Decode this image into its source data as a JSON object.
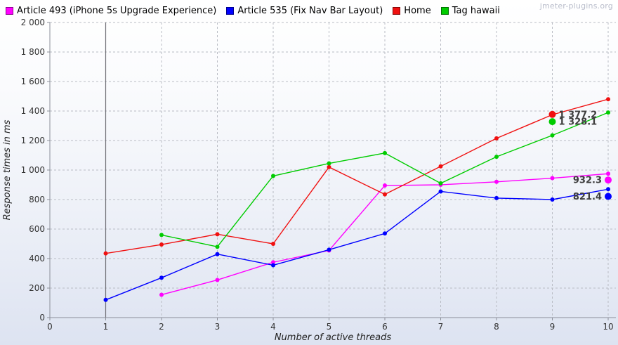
{
  "watermark": "jmeter-plugins.org",
  "chart_data": {
    "type": "line",
    "title": "",
    "xlabel": "Number of active threads",
    "ylabel": "Response times in ms",
    "xlim": [
      0,
      10
    ],
    "ylim": [
      0,
      2000
    ],
    "grid": true,
    "legend_position": "top-left",
    "x_ticks": [
      0,
      1,
      2,
      3,
      4,
      5,
      6,
      7,
      8,
      9,
      10
    ],
    "x_tick_labels": [
      "0",
      "1",
      "2",
      "3",
      "4",
      "5",
      "6",
      "7",
      "8",
      "9",
      "10"
    ],
    "y_ticks": [
      0,
      200,
      400,
      600,
      800,
      1000,
      1200,
      1400,
      1600,
      1800,
      2000
    ],
    "y_tick_labels": [
      "0",
      "200",
      "400",
      "600",
      "800",
      "1 000",
      "1 200",
      "1 400",
      "1 600",
      "1 800",
      "2 000"
    ],
    "vertical_marker_x": 1,
    "series": [
      {
        "name": "Article 493 (iPhone 5s Upgrade Experience)",
        "color": "#ff00ff",
        "points": [
          [
            2,
            155
          ],
          [
            3,
            255
          ],
          [
            4,
            375
          ],
          [
            5,
            455
          ],
          [
            6,
            895
          ],
          [
            7,
            900
          ],
          [
            8,
            920
          ],
          [
            9,
            945
          ],
          [
            10,
            975
          ]
        ]
      },
      {
        "name": "Article 535 (Fix Nav Bar Layout)",
        "color": "#0000ff",
        "points": [
          [
            1,
            120
          ],
          [
            2,
            270
          ],
          [
            3,
            430
          ],
          [
            4,
            355
          ],
          [
            5,
            460
          ],
          [
            6,
            570
          ],
          [
            7,
            855
          ],
          [
            8,
            810
          ],
          [
            9,
            800
          ],
          [
            10,
            870
          ]
        ]
      },
      {
        "name": "Home",
        "color": "#f01010",
        "points": [
          [
            1,
            435
          ],
          [
            2,
            495
          ],
          [
            3,
            565
          ],
          [
            4,
            500
          ],
          [
            5,
            1020
          ],
          [
            6,
            835
          ],
          [
            7,
            1025
          ],
          [
            8,
            1215
          ],
          [
            9,
            1375
          ],
          [
            10,
            1480
          ]
        ]
      },
      {
        "name": "Tag hawaii",
        "color": "#00cc00",
        "points": [
          [
            2,
            560
          ],
          [
            3,
            480
          ],
          [
            4,
            960
          ],
          [
            5,
            1045
          ],
          [
            6,
            1115
          ],
          [
            7,
            910
          ],
          [
            8,
            1090
          ],
          [
            9,
            1235
          ],
          [
            10,
            1390
          ]
        ]
      }
    ],
    "value_labels": [
      {
        "series": "Home",
        "text": "1 377.2",
        "x": 9,
        "y": 1377.2,
        "side": "right",
        "color": "#f01010"
      },
      {
        "series": "Tag hawaii",
        "text": "1 328.1",
        "x": 9,
        "y": 1328.1,
        "side": "right",
        "color": "#00cc00"
      },
      {
        "series": "Article 493 (iPhone 5s Upgrade Experience)",
        "text": "932.3",
        "x": 10,
        "y": 932.3,
        "side": "left",
        "color": "#ff00ff"
      },
      {
        "series": "Article 535 (Fix Nav Bar Layout)",
        "text": "821.4",
        "x": 10,
        "y": 821.4,
        "side": "left",
        "color": "#0000ff"
      }
    ]
  }
}
